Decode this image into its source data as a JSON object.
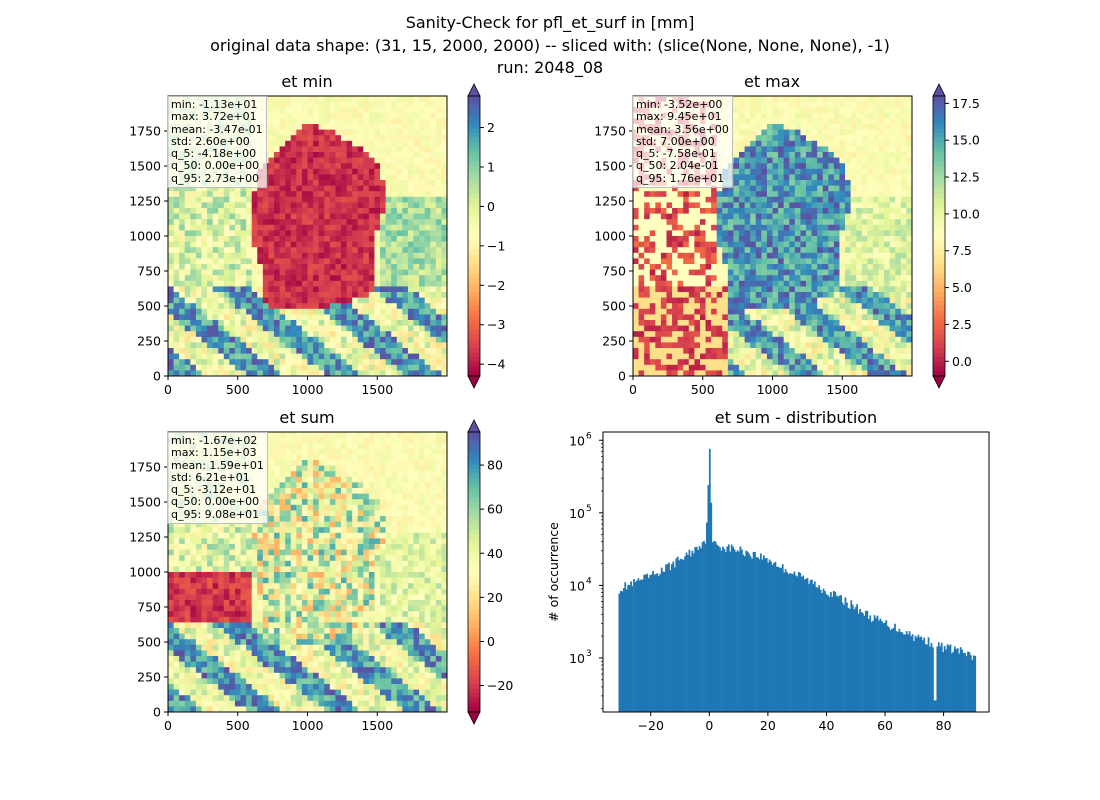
{
  "figure": {
    "title_lines": [
      "Sanity-Check for pfl_et_surf in [mm]",
      "original data shape: (31, 15, 2000, 2000) -- sliced with: (slice(None, None, None), -1)",
      "run: 2048_08"
    ]
  },
  "colors": {
    "hist_bar": "#1f77b4",
    "stats_border": "#bdbdbd",
    "colormap": "Spectral"
  },
  "chart_data": [
    {
      "type": "heatmap",
      "title": "et min",
      "colormap": "Spectral",
      "xlim": [
        0,
        2000
      ],
      "ylim": [
        0,
        2000
      ],
      "x_ticks": [
        "0",
        "500",
        "1000",
        "1500"
      ],
      "y_ticks": [
        "0",
        "250",
        "500",
        "750",
        "1000",
        "1250",
        "1500",
        "1750"
      ],
      "colorbar": {
        "range": [
          -4.3,
          2.8
        ],
        "ticks": [
          "2",
          "1",
          "0",
          "−1",
          "−2",
          "−3",
          "−4"
        ],
        "tick_values": [
          2,
          1,
          0,
          -1,
          -2,
          -3,
          -4
        ],
        "extend": "both"
      },
      "stats": [
        "min: -1.13e+01",
        "max: 3.72e+01",
        "mean: -3.47e-01",
        "std: 2.60e+00",
        "q_5: -4.18e+00",
        "q_50: 0.00e+00",
        "q_95: 2.73e+00"
      ]
    },
    {
      "type": "heatmap",
      "title": "et max",
      "colormap": "Spectral",
      "xlim": [
        0,
        2000
      ],
      "ylim": [
        0,
        2000
      ],
      "x_ticks": [
        "0",
        "500",
        "1000",
        "1500"
      ],
      "y_ticks": [
        "0",
        "250",
        "500",
        "750",
        "1000",
        "1250",
        "1500",
        "1750"
      ],
      "colorbar": {
        "range": [
          -1,
          18
        ],
        "ticks": [
          "17.5",
          "15.0",
          "12.5",
          "10.0",
          "7.5",
          "5.0",
          "2.5",
          "0.0"
        ],
        "tick_values": [
          17.5,
          15,
          12.5,
          10,
          7.5,
          5,
          2.5,
          0
        ],
        "extend": "both"
      },
      "stats": [
        "min: -3.52e+00",
        "max: 9.45e+01",
        "mean: 3.56e+00",
        "std: 7.00e+00",
        "q_5: -7.58e-01",
        "q_50: 2.04e-01",
        "q_95: 1.76e+01"
      ]
    },
    {
      "type": "heatmap",
      "title": "et sum",
      "colormap": "Spectral",
      "xlim": [
        0,
        2000
      ],
      "ylim": [
        0,
        2000
      ],
      "x_ticks": [
        "0",
        "500",
        "1000",
        "1500"
      ],
      "y_ticks": [
        "0",
        "250",
        "500",
        "750",
        "1000",
        "1250",
        "1500",
        "1750"
      ],
      "colorbar": {
        "range": [
          -32,
          95
        ],
        "ticks": [
          "80",
          "60",
          "40",
          "20",
          "0",
          "−20"
        ],
        "tick_values": [
          80,
          60,
          40,
          20,
          0,
          -20
        ],
        "extend": "both"
      },
      "stats": [
        "min: -1.67e+02",
        "max: 1.15e+03",
        "mean: 1.59e+01",
        "std: 6.21e+01",
        "q_5: -3.12e+01",
        "q_50: 0.00e+00",
        "q_95: 9.08e+01"
      ]
    },
    {
      "type": "bar",
      "title": "et sum - distribution",
      "ylabel": "# of occurrence",
      "yscale": "log",
      "xlim": [
        -36.3,
        95.5
      ],
      "ylim": [
        180,
        1300000
      ],
      "x_ticks": [
        "−20",
        "0",
        "20",
        "40",
        "60",
        "80"
      ],
      "x_tick_values": [
        -20,
        0,
        20,
        40,
        60,
        80
      ],
      "y_ticks": [
        "10",
        "10",
        "10",
        "10"
      ],
      "y_tick_exponents": [
        "3",
        "4",
        "5",
        "6"
      ],
      "y_tick_values": [
        1000,
        10000,
        100000,
        1000000
      ],
      "bins": {
        "start": -31,
        "end": 91,
        "count": 245
      },
      "profile": [
        [
          -31,
          9000
        ],
        [
          -25,
          11000
        ],
        [
          -20,
          13500
        ],
        [
          -15,
          17000
        ],
        [
          -10,
          23000
        ],
        [
          -5,
          31000
        ],
        [
          -1,
          45000
        ],
        [
          0,
          850000
        ],
        [
          1,
          38000
        ],
        [
          5,
          34000
        ],
        [
          10,
          31000
        ],
        [
          15,
          27000
        ],
        [
          20,
          23000
        ],
        [
          25,
          17500
        ],
        [
          30,
          14000
        ],
        [
          35,
          11000
        ],
        [
          40,
          8500
        ],
        [
          45,
          6500
        ],
        [
          50,
          5000
        ],
        [
          55,
          3700
        ],
        [
          60,
          3000
        ],
        [
          65,
          2500
        ],
        [
          70,
          2000
        ],
        [
          75,
          1700
        ],
        [
          80,
          1400
        ],
        [
          85,
          1300
        ],
        [
          90,
          1000
        ]
      ]
    }
  ]
}
